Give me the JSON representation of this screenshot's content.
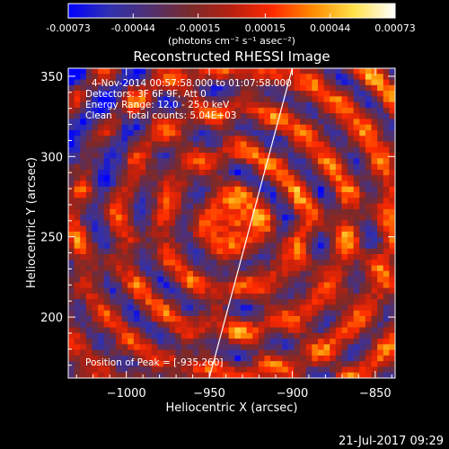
{
  "colorbar": {
    "tick_labels": [
      "-0.00073",
      "-0.00044",
      "-0.00015",
      "0.00015",
      "0.00044",
      "0.00073"
    ],
    "unit_label": "(photons cm⁻² s⁻¹ asec⁻²)",
    "range": [
      -0.00073,
      0.00073
    ]
  },
  "chart_data": {
    "type": "heatmap",
    "title": "Reconstructed RHESSI Image",
    "xlabel": "Heliocentric X (arcsec)",
    "ylabel": "Heliocentric Y (arcsec)",
    "xlim": [
      -1035,
      -838
    ],
    "ylim": [
      162,
      355
    ],
    "x_ticks": [
      -1000,
      -950,
      -900,
      -850
    ],
    "y_ticks": [
      200,
      250,
      300,
      350
    ],
    "x_tick_labels": [
      "−1000",
      "−950",
      "−900",
      "−850"
    ],
    "y_tick_labels": [
      "200",
      "250",
      "300",
      "350"
    ],
    "info_lines": [
      "4-Nov-2014 00:57:58.000 to 01:07:58.000",
      "Detectors: 3F 6F 9F, Att 0",
      "Energy Range: 12.0 - 25.0 keV",
      "Clean     Total counts: 5.04E+03"
    ],
    "peak_text": "Position of Peak = [-935,260]",
    "peak": [
      -935,
      260
    ],
    "limb_line": [
      [
        -950,
        162
      ],
      [
        -900,
        355
      ]
    ],
    "colormap": [
      "#0000ff",
      "#3030b0",
      "#503070",
      "#7a2a2a",
      "#b82010",
      "#ff2a00",
      "#ff8c00",
      "#ffe14a",
      "#ffffff"
    ]
  },
  "footer": {
    "timestamp": "21-Jul-2017 09:29"
  }
}
